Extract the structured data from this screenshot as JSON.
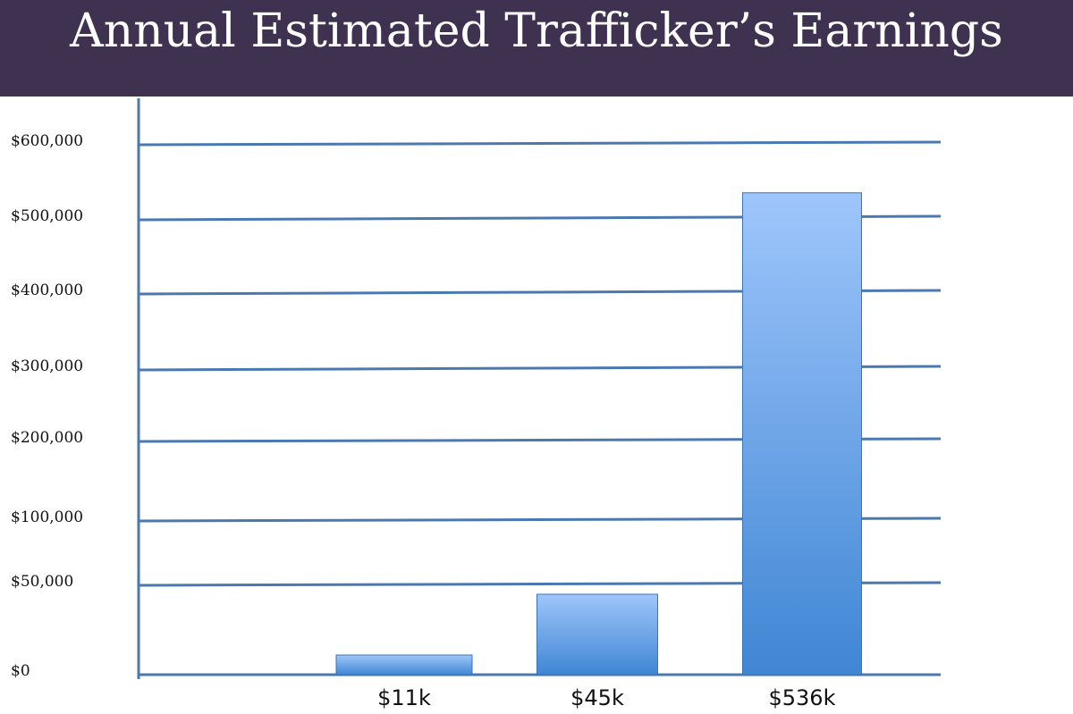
{
  "header": {
    "title": "Annual Estimated Trafficker’s Earnings"
  },
  "colors": {
    "header_bg": "#3e3250",
    "title_text": "#ffffff",
    "gridline": "#4a78b0",
    "bar_top": "#9fc6fb",
    "bar_bottom": "#3f86d4",
    "bar_border": "#3a74b8"
  },
  "chart_data": {
    "type": "bar",
    "title": "",
    "xlabel": "",
    "ylabel": "",
    "grid": true,
    "legend": "none",
    "categories": [
      "$11k",
      "$45k",
      "$536k"
    ],
    "values": [
      11000,
      45000,
      536000
    ],
    "y_ticks": [
      {
        "label": "$0",
        "value": 0
      },
      {
        "label": "$50,000",
        "value": 50000
      },
      {
        "label": "$100,000",
        "value": 100000
      },
      {
        "label": "$200,000",
        "value": 200000
      },
      {
        "label": "$300,000",
        "value": 300000
      },
      {
        "label": "$400,000",
        "value": 400000
      },
      {
        "label": "$500,000",
        "value": 500000
      },
      {
        "label": "$600,000",
        "value": 600000
      }
    ]
  }
}
